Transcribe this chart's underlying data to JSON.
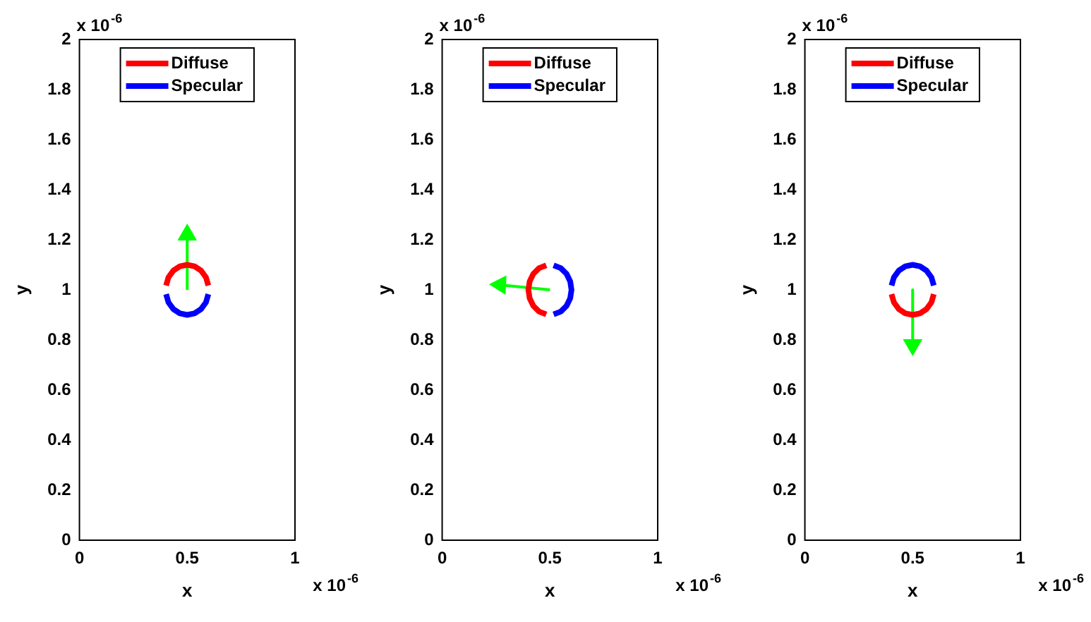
{
  "chart_data": [
    {
      "type": "line",
      "xlabel": "x",
      "ylabel": "y",
      "xlim": [
        0,
        1
      ],
      "xticks": [
        0,
        0.5,
        1
      ],
      "ylim": [
        0,
        2
      ],
      "yticks": [
        0,
        0.2,
        0.4,
        0.6,
        0.8,
        1,
        1.2,
        1.4,
        1.6,
        1.8,
        2
      ],
      "grid": false,
      "legend": "top",
      "marker": "none",
      "line_style": "solid",
      "annotations": [
        "x 10$^{-6}$",
        "x 10$^{-6}$"
      ],
      "series": [
        {
          "name": "Diffuse",
          "color": "#ff0000",
          "x": [
            0.598,
            0.587,
            0.564,
            0.534,
            0.5,
            0.466,
            0.436,
            0.413,
            0.402
          ],
          "values": [
            1.017,
            1.05,
            1.077,
            1.094,
            1.1,
            1.094,
            1.077,
            1.05,
            1.017
          ]
        },
        {
          "name": "Specular",
          "color": "#0000ff",
          "x": [
            0.598,
            0.587,
            0.564,
            0.534,
            0.5,
            0.466,
            0.436,
            0.413,
            0.402
          ],
          "values": [
            0.983,
            0.95,
            0.923,
            0.906,
            0.9,
            0.906,
            0.923,
            0.95,
            0.983
          ]
        },
        {
          "color": "#00ff00",
          "marker": "triangle",
          "x": [
            0.5,
            0.5
          ],
          "values": [
            1,
            1.22
          ]
        }
      ]
    },
    {
      "type": "line",
      "xlabel": "x",
      "ylabel": "y",
      "xlim": [
        0,
        1
      ],
      "xticks": [
        0,
        0.5,
        1
      ],
      "ylim": [
        0,
        2
      ],
      "yticks": [
        0,
        0.2,
        0.4,
        0.6,
        0.8,
        1,
        1.2,
        1.4,
        1.6,
        1.8,
        2
      ],
      "grid": false,
      "legend": "top",
      "marker": "none",
      "line_style": "solid",
      "annotations": [
        "x 10$^{-6}$",
        "x 10$^{-6}$"
      ],
      "series": [
        {
          "name": "Diffuse",
          "color": "#ff0000",
          "x": [
            0.483,
            0.45,
            0.423,
            0.406,
            0.4,
            0.406,
            0.423,
            0.45,
            0.483
          ],
          "values": [
            1.098,
            1.087,
            1.064,
            1.034,
            1,
            0.966,
            0.936,
            0.913,
            0.902
          ]
        },
        {
          "name": "Specular",
          "color": "#0000ff",
          "x": [
            0.517,
            0.55,
            0.577,
            0.594,
            0.6,
            0.594,
            0.577,
            0.55,
            0.517
          ],
          "values": [
            1.098,
            1.087,
            1.064,
            1.034,
            1,
            0.966,
            0.936,
            0.913,
            0.902
          ]
        },
        {
          "color": "#00ff00",
          "marker": "triangle",
          "x": [
            0.5,
            0.27
          ],
          "values": [
            1,
            1.02
          ]
        }
      ]
    },
    {
      "type": "line",
      "xlabel": "x",
      "ylabel": "y",
      "xlim": [
        0,
        1
      ],
      "xticks": [
        0,
        0.5,
        1
      ],
      "ylim": [
        0,
        2
      ],
      "yticks": [
        0,
        0.2,
        0.4,
        0.6,
        0.8,
        1,
        1.2,
        1.4,
        1.6,
        1.8,
        2
      ],
      "grid": false,
      "legend": "top",
      "marker": "none",
      "line_style": "solid",
      "annotations": [
        "x 10$^{-6}$",
        "x 10$^{-6}$"
      ],
      "series": [
        {
          "name": "Diffuse",
          "color": "#ff0000",
          "x": [
            0.598,
            0.587,
            0.564,
            0.534,
            0.5,
            0.466,
            0.436,
            0.413,
            0.402
          ],
          "values": [
            0.983,
            0.95,
            0.923,
            0.906,
            0.9,
            0.906,
            0.923,
            0.95,
            0.983
          ]
        },
        {
          "name": "Specular",
          "color": "#0000ff",
          "x": [
            0.598,
            0.587,
            0.564,
            0.534,
            0.5,
            0.466,
            0.436,
            0.413,
            0.402
          ],
          "values": [
            1.017,
            1.05,
            1.077,
            1.094,
            1.1,
            1.094,
            1.077,
            1.05,
            1.017
          ]
        },
        {
          "color": "#00ff00",
          "marker": "triangle",
          "x": [
            0.5,
            0.5
          ],
          "values": [
            1,
            0.78
          ]
        }
      ]
    }
  ]
}
